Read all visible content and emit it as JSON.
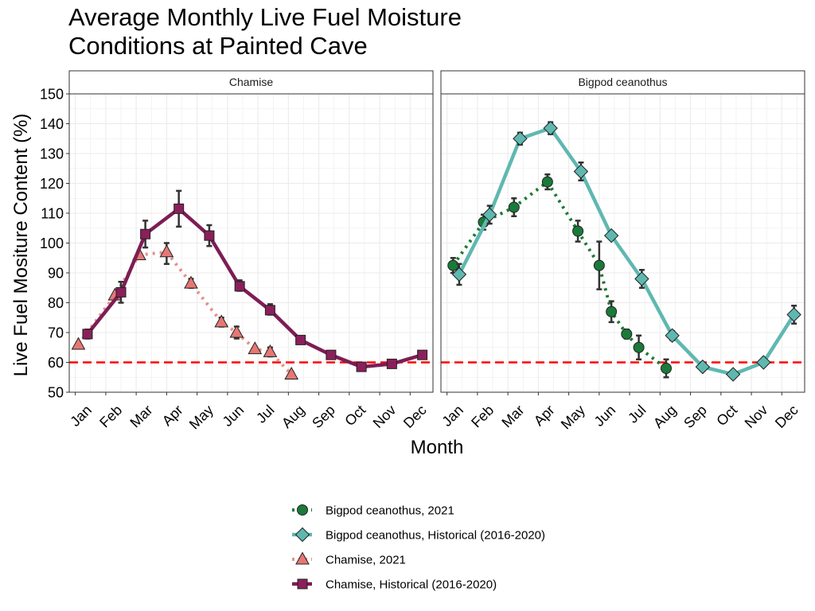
{
  "title_line1": "Average Monthly Live Fuel Moisture",
  "title_line2": "Conditions at Painted Cave",
  "chart_data": {
    "type": "line",
    "title": "Average Monthly Live Fuel Moisture Conditions at Painted Cave",
    "xlabel": "Month",
    "ylabel": "Live Fuel Mositure Content (%)",
    "x_ticks": [
      "Jan",
      "Feb",
      "Mar",
      "Apr",
      "May",
      "Jun",
      "Jul",
      "Aug",
      "Sep",
      "Oct",
      "Nov",
      "Dec"
    ],
    "y_ticks": [
      50,
      60,
      70,
      80,
      90,
      100,
      110,
      120,
      130,
      140,
      150
    ],
    "ylim": [
      50,
      150
    ],
    "threshold": {
      "value": 60,
      "color": "#ff0000",
      "style": "dashed"
    },
    "grid": true,
    "legend_position": "bottom",
    "panels": [
      {
        "strip": "Chamise",
        "series": [
          {
            "name": "Chamise, 2021",
            "color": "#e57874",
            "line_color": "#e6908b",
            "marker": "triangle",
            "line_style": "dotted",
            "points": [
              {
                "x": 1.1,
                "y": 66
              },
              {
                "x": 2.3,
                "y": 82.5
              },
              {
                "x": 3.1,
                "y": 96
              },
              {
                "x": 4.0,
                "y": 97,
                "lo": 93,
                "hi": 100
              },
              {
                "x": 4.8,
                "y": 86.5,
                "lo": 85,
                "hi": 88
              },
              {
                "x": 5.8,
                "y": 73.5,
                "lo": 72,
                "hi": 75
              },
              {
                "x": 6.3,
                "y": 70,
                "lo": 68,
                "hi": 72
              },
              {
                "x": 6.9,
                "y": 64.5
              },
              {
                "x": 7.4,
                "y": 63.5,
                "lo": 62,
                "hi": 65
              },
              {
                "x": 8.1,
                "y": 56
              }
            ]
          },
          {
            "name": "Chamise, Historical (2016-2020)",
            "color": "#8b1f5b",
            "line_color": "#7d1d54",
            "marker": "square",
            "line_style": "solid",
            "points": [
              {
                "x": 1.4,
                "y": 69.5,
                "lo": 68,
                "hi": 71
              },
              {
                "x": 2.5,
                "y": 83.5,
                "lo": 80,
                "hi": 87
              },
              {
                "x": 3.3,
                "y": 103,
                "lo": 98.5,
                "hi": 107.5
              },
              {
                "x": 4.4,
                "y": 111.5,
                "lo": 105.5,
                "hi": 117.5
              },
              {
                "x": 5.4,
                "y": 102.5,
                "lo": 99,
                "hi": 106
              },
              {
                "x": 6.4,
                "y": 85.5,
                "lo": 84,
                "hi": 87.5
              },
              {
                "x": 7.4,
                "y": 77.5,
                "lo": 76,
                "hi": 79.5
              },
              {
                "x": 8.4,
                "y": 67.5,
                "lo": 66.5,
                "hi": 68.5
              },
              {
                "x": 9.4,
                "y": 62.5
              },
              {
                "x": 10.4,
                "y": 58.5
              },
              {
                "x": 11.4,
                "y": 59.5
              },
              {
                "x": 12.4,
                "y": 62.5
              }
            ]
          }
        ]
      },
      {
        "strip": "Bigpod ceanothus",
        "series": [
          {
            "name": "Bigpod ceanothus, 2021",
            "color": "#1a7a3a",
            "line_color": "#1b7a35",
            "marker": "circle",
            "line_style": "dotted",
            "points": [
              {
                "x": 1.2,
                "y": 92.5,
                "lo": 90,
                "hi": 95
              },
              {
                "x": 2.2,
                "y": 107,
                "lo": 104.5,
                "hi": 109.5
              },
              {
                "x": 3.2,
                "y": 112,
                "lo": 109,
                "hi": 115
              },
              {
                "x": 4.3,
                "y": 120.5,
                "lo": 118,
                "hi": 123
              },
              {
                "x": 5.3,
                "y": 104,
                "lo": 100.5,
                "hi": 107.5
              },
              {
                "x": 6.0,
                "y": 92.5,
                "lo": 84.5,
                "hi": 100.5
              },
              {
                "x": 6.4,
                "y": 77,
                "lo": 73.5,
                "hi": 80.5
              },
              {
                "x": 6.9,
                "y": 69.5,
                "lo": 68,
                "hi": 71
              },
              {
                "x": 7.3,
                "y": 65,
                "lo": 61,
                "hi": 69
              },
              {
                "x": 8.2,
                "y": 58,
                "lo": 55,
                "hi": 61
              }
            ]
          },
          {
            "name": "Bigpod ceanothus, Historical (2016-2020)",
            "color": "#5fb8b0",
            "line_color": "#5fb8b0",
            "marker": "diamond",
            "line_style": "solid",
            "points": [
              {
                "x": 1.4,
                "y": 89.5,
                "lo": 86,
                "hi": 93
              },
              {
                "x": 2.4,
                "y": 109.5,
                "lo": 106.5,
                "hi": 112.5
              },
              {
                "x": 3.4,
                "y": 135,
                "lo": 133,
                "hi": 137
              },
              {
                "x": 4.4,
                "y": 138.5,
                "lo": 136.5,
                "hi": 140.5
              },
              {
                "x": 5.4,
                "y": 124,
                "lo": 121,
                "hi": 127
              },
              {
                "x": 6.4,
                "y": 102.5
              },
              {
                "x": 7.4,
                "y": 88,
                "lo": 85,
                "hi": 91
              },
              {
                "x": 8.4,
                "y": 69,
                "lo": 67.5,
                "hi": 70.5
              },
              {
                "x": 9.4,
                "y": 58.5
              },
              {
                "x": 10.4,
                "y": 56
              },
              {
                "x": 11.4,
                "y": 60
              },
              {
                "x": 12.4,
                "y": 76,
                "lo": 73,
                "hi": 79
              }
            ]
          }
        ]
      }
    ],
    "legend_order": [
      "Bigpod ceanothus, 2021",
      "Bigpod ceanothus, Historical (2016-2020)",
      "Chamise, 2021",
      "Chamise, Historical (2016-2020)"
    ]
  }
}
